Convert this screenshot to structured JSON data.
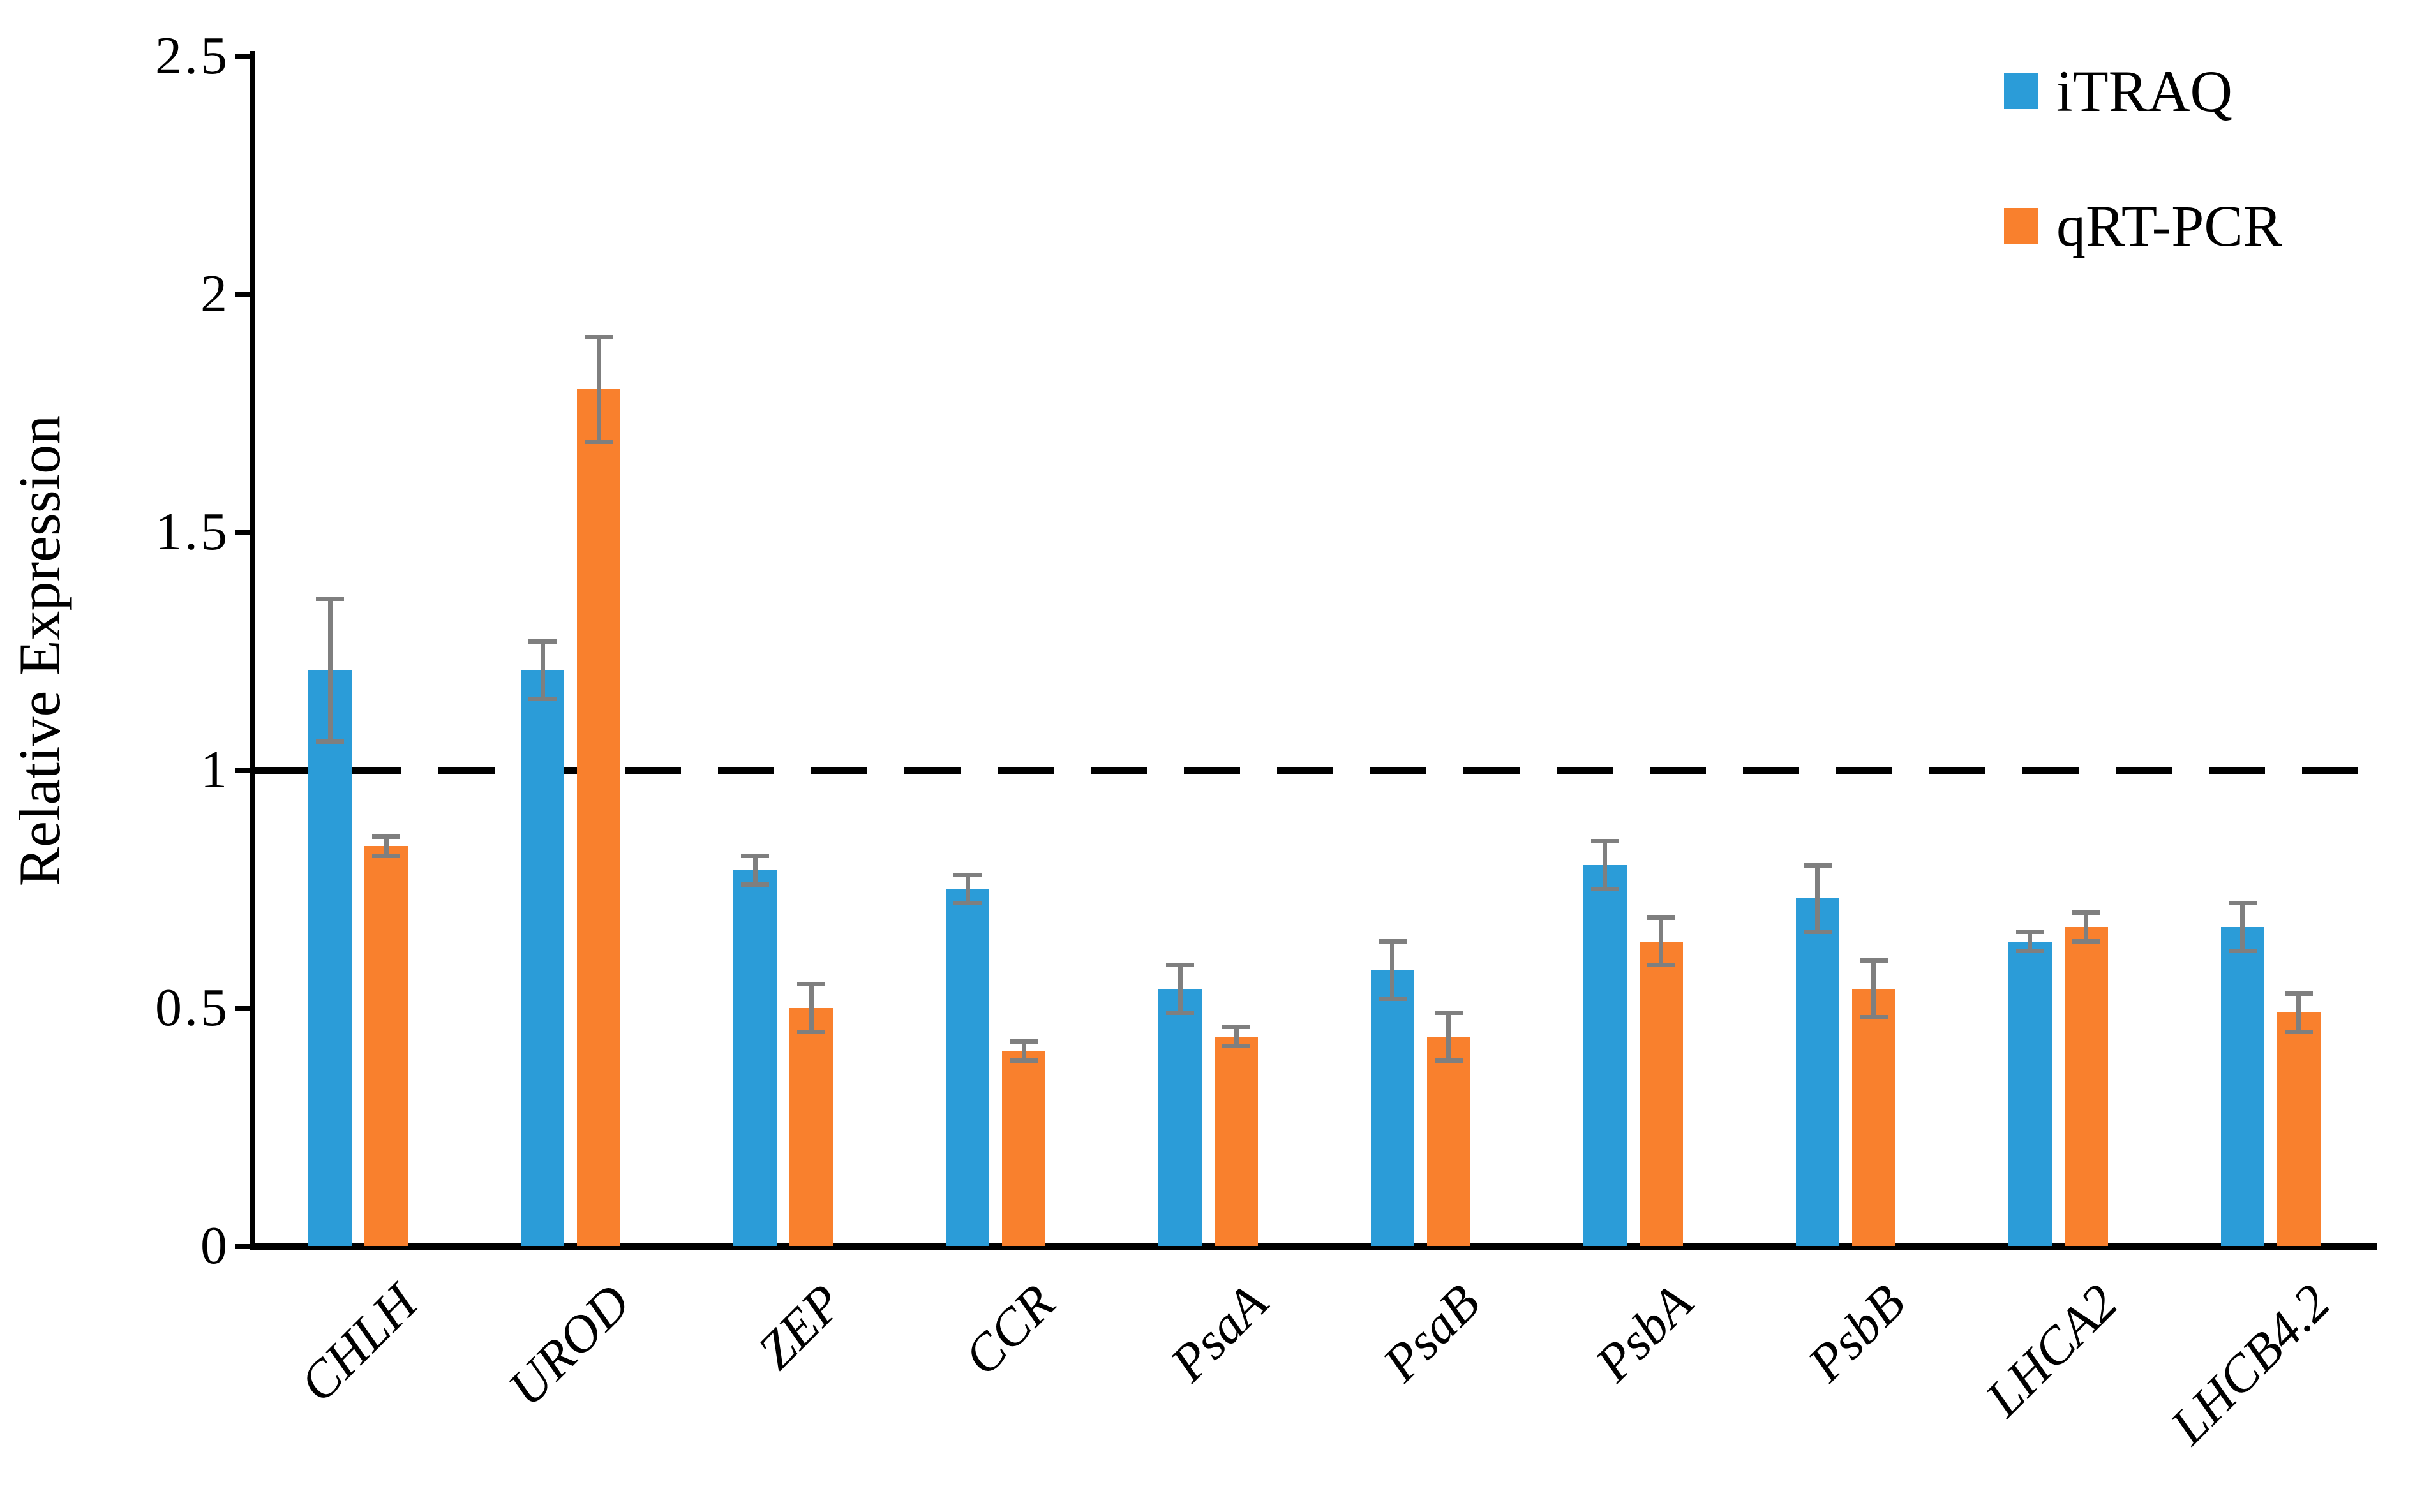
{
  "chart_data": {
    "type": "bar",
    "title": "",
    "xlabel": "",
    "ylabel": "Relative Expression",
    "ylim": [
      0,
      2.5
    ],
    "yticks": [
      0,
      0.5,
      1,
      1.5,
      2,
      2.5
    ],
    "ytick_labels": [
      "0",
      "0.5",
      "1",
      "1.5",
      "2",
      "2.5"
    ],
    "grid": false,
    "legend_position": "top-right",
    "reference_line_y": 1.0,
    "categories": [
      "CHLH",
      "UROD",
      "ZEP",
      "CCR",
      "PsaA",
      "PsaB",
      "PsbA",
      "PsbB",
      "LHCA2",
      "LHCB4.2"
    ],
    "series": [
      {
        "name": "iTRAQ",
        "color": "#2B9CD8",
        "values": [
          1.21,
          1.21,
          0.79,
          0.75,
          0.54,
          0.58,
          0.8,
          0.73,
          0.64,
          0.67
        ],
        "errors": [
          0.15,
          0.06,
          0.03,
          0.03,
          0.05,
          0.06,
          0.05,
          0.07,
          0.02,
          0.05
        ]
      },
      {
        "name": "qRT-PCR",
        "color": "#F9802D",
        "values": [
          0.84,
          1.8,
          0.5,
          0.41,
          0.44,
          0.44,
          0.64,
          0.54,
          0.67,
          0.49
        ],
        "errors": [
          0.02,
          0.11,
          0.05,
          0.02,
          0.02,
          0.05,
          0.05,
          0.06,
          0.03,
          0.04
        ]
      }
    ],
    "error_bar_color": "#7F7F7F",
    "axis_color": "#000000"
  }
}
